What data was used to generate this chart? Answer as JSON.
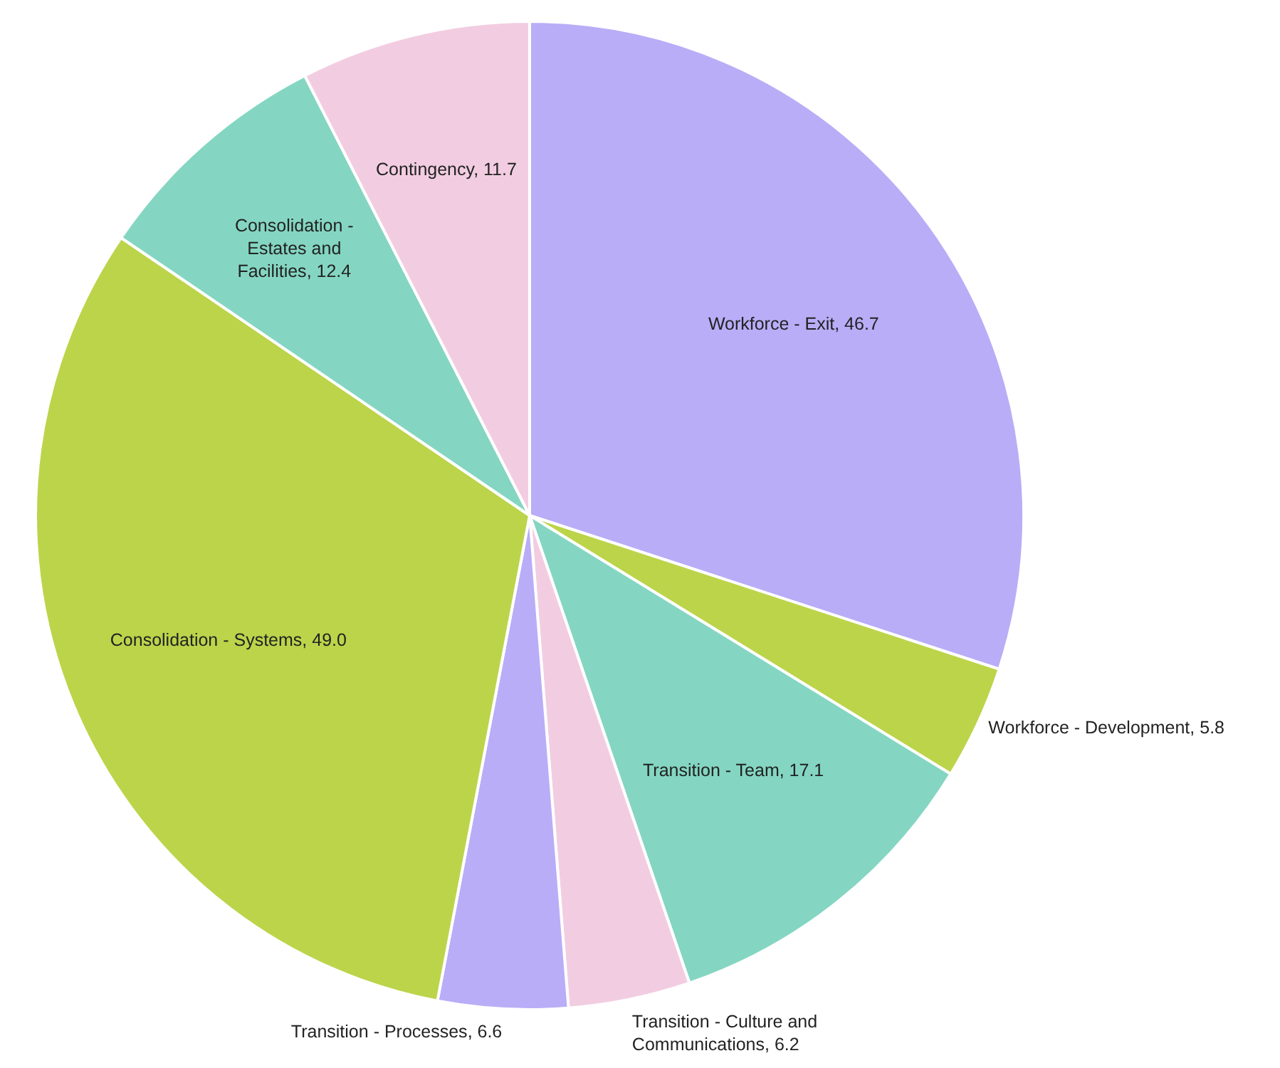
{
  "chart_data": {
    "type": "pie",
    "categories": [
      "Workforce - Exit",
      "Workforce - Development",
      "Transition - Team",
      "Transition - Culture and Communications",
      "Transition - Processes",
      "Consolidation - Systems",
      "Consolidation - Estates and Facilities",
      "Contingency"
    ],
    "values": [
      46.7,
      5.8,
      17.1,
      6.2,
      6.6,
      49.0,
      12.4,
      11.7
    ],
    "colors": [
      "#b9adf7",
      "#bcd44a",
      "#84d6c2",
      "#f2cde1",
      "#b9adf7",
      "#bcd44a",
      "#84d6c2",
      "#f2cde1"
    ],
    "value_labels": [
      ", 46.7",
      ", 5.8",
      ", 17.1",
      ", 6.2",
      ", 6.6",
      ", 49.0",
      ", 12.4",
      ", 11.7"
    ],
    "legend": false
  }
}
